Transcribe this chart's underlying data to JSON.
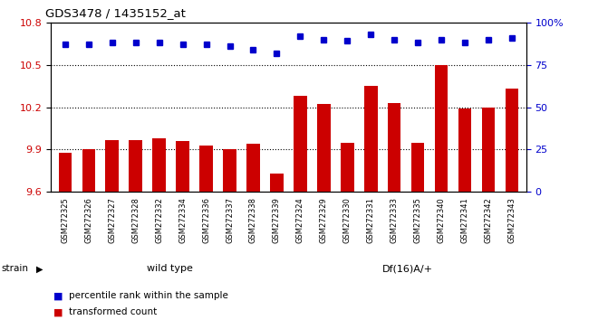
{
  "title": "GDS3478 / 1435152_at",
  "samples": [
    "GSM272325",
    "GSM272326",
    "GSM272327",
    "GSM272328",
    "GSM272332",
    "GSM272334",
    "GSM272336",
    "GSM272337",
    "GSM272338",
    "GSM272339",
    "GSM272324",
    "GSM272329",
    "GSM272330",
    "GSM272331",
    "GSM272333",
    "GSM272335",
    "GSM272340",
    "GSM272341",
    "GSM272342",
    "GSM272343"
  ],
  "bar_values": [
    9.88,
    9.9,
    9.97,
    9.97,
    9.98,
    9.96,
    9.93,
    9.9,
    9.94,
    9.73,
    10.28,
    10.22,
    9.95,
    10.35,
    10.23,
    9.95,
    10.5,
    10.19,
    10.2,
    10.33
  ],
  "percentile_values": [
    87,
    87,
    88,
    88,
    88,
    87,
    87,
    86,
    84,
    82,
    92,
    90,
    89,
    93,
    90,
    88,
    90,
    88,
    90,
    91
  ],
  "bar_color": "#cc0000",
  "dot_color": "#0000cc",
  "ylim_left": [
    9.6,
    10.8
  ],
  "ylim_right": [
    0,
    100
  ],
  "yticks_left": [
    9.6,
    9.9,
    10.2,
    10.5,
    10.8
  ],
  "yticks_right": [
    0,
    25,
    50,
    75,
    100
  ],
  "ytick_right_labels": [
    "0",
    "25",
    "50",
    "75",
    "100%"
  ],
  "grid_values": [
    9.9,
    10.2,
    10.5
  ],
  "wild_type_count": 10,
  "group1_label": "wild type",
  "group2_label": "Df(16)A/+",
  "group1_color": "#aaeaaa",
  "group2_color": "#44cc44",
  "strain_label": "strain",
  "legend_bar_label": "transformed count",
  "legend_dot_label": "percentile rank within the sample",
  "bar_label_color": "#cc0000",
  "dot_label_color": "#0000cc",
  "tick_label_color_left": "#cc0000",
  "tick_label_color_right": "#0000cc"
}
